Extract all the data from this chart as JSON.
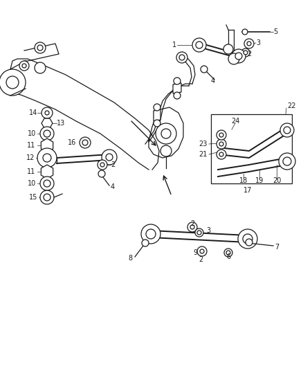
{
  "bg_color": "#ffffff",
  "line_color": "#1a1a1a",
  "figsize": [
    4.38,
    5.33
  ],
  "dpi": 100,
  "lw": 0.9,
  "label_fs": 7.0
}
